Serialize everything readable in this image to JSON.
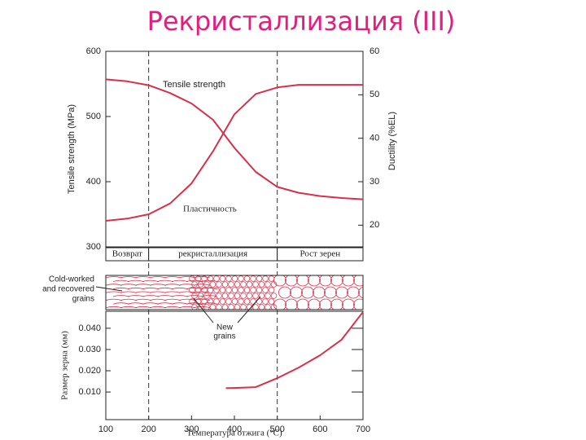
{
  "title": "Рекристаллизация (III)",
  "chart_data": [
    {
      "type": "line",
      "ylabel": "Tensile strength (MPa)",
      "y2label": "Ductility (%EL)",
      "x": [
        100,
        150,
        200,
        250,
        300,
        350,
        400,
        450,
        500,
        550,
        600,
        650,
        700
      ],
      "xlim": [
        100,
        700
      ],
      "ylim": [
        300,
        600
      ],
      "yticks": [
        300,
        400,
        500,
        600
      ],
      "y2lim": [
        15,
        60
      ],
      "y2ticks": [
        20,
        30,
        40,
        50,
        60
      ],
      "series": [
        {
          "name": "Tensile strength",
          "color": "#d8304a",
          "values": [
            557,
            554,
            548,
            536,
            520,
            495,
            452,
            415,
            392,
            383,
            378,
            375,
            373
          ]
        },
        {
          "name": "Пластичность",
          "color": "#d8304a",
          "axis": "y2",
          "values": [
            21,
            21.5,
            22.5,
            25,
            29.6,
            37,
            45.5,
            50.2,
            51.7,
            52.3,
            52.3,
            52.3,
            52.3
          ]
        }
      ],
      "dividers": [
        200,
        500
      ],
      "stages": [
        "Возврат",
        "рекристаллизация",
        "Рост зерен"
      ],
      "annotations": [
        [
          "Cold-worked",
          "and recovered",
          "grains"
        ],
        [
          "New",
          "grains"
        ]
      ]
    },
    {
      "type": "line",
      "ylabel": "Размер зерна (мм)",
      "xlabel": "Температура отжига (°C)",
      "x": [
        380,
        400,
        450,
        500,
        550,
        600,
        650,
        700
      ],
      "xlim": [
        100,
        700
      ],
      "xticks": [
        100,
        200,
        300,
        400,
        500,
        600,
        700
      ],
      "ylim": [
        -0.003,
        0.048
      ],
      "yticks": [
        {
          "value": 0.01,
          "label": "0.010"
        },
        {
          "value": 0.02,
          "label": "0.020"
        },
        {
          "value": 0.03,
          "label": "0.030"
        },
        {
          "value": 0.04,
          "label": "0.040"
        }
      ],
      "series": [
        {
          "color": "#d8304a",
          "values": [
            0.0118,
            0.0119,
            0.0123,
            0.0165,
            0.0215,
            0.0273,
            0.0346,
            0.0477
          ]
        }
      ],
      "dividers": [
        200,
        500
      ]
    }
  ]
}
